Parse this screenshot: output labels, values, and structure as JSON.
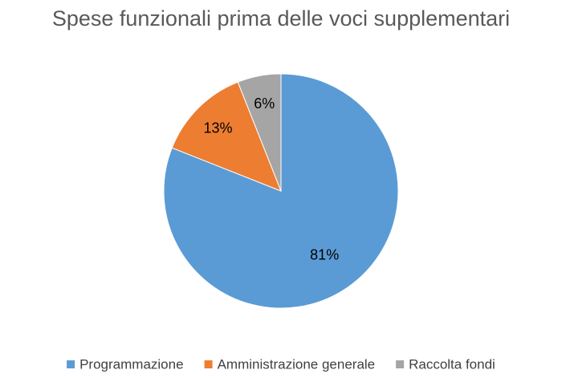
{
  "chart_data": {
    "type": "pie",
    "title": "Spese funzionali prima delle voci supplementari",
    "legend_position": "bottom",
    "slices": [
      {
        "label": "Programmazione",
        "value": 81,
        "display": "81%",
        "color": "#5b9bd5"
      },
      {
        "label": "Amministrazione generale",
        "value": 13,
        "display": "13%",
        "color": "#ed7d31"
      },
      {
        "label": "Raccolta fondi",
        "value": 6,
        "display": "6%",
        "color": "#a5a5a5"
      }
    ]
  }
}
